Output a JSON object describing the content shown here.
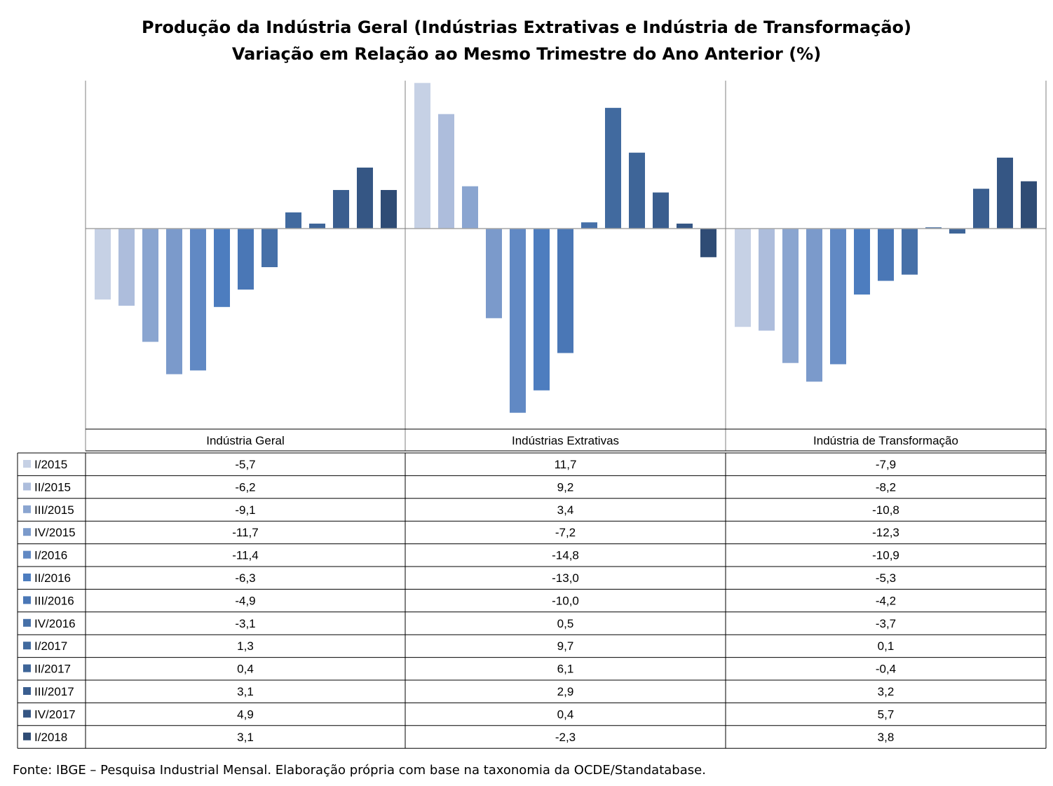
{
  "title": "Produção da Indústria Geral (Indústrias Extrativas e Indústria de Transformação)",
  "subtitle": "Variação em Relação ao Mesmo Trimestre do Ano Anterior (%)",
  "footer": "Fonte: IBGE – Pesquisa Industrial Mensal. Elaboração própria com base na taxonomia da OCDE/Standatabase.",
  "chart_data": {
    "type": "bar",
    "categories": [
      "Indústria Geral",
      "Indústrias Extrativas",
      "Indústria de Transformação"
    ],
    "series": [
      {
        "name": "I/2015",
        "color": "#c6d1e5",
        "values": [
          -5.7,
          11.7,
          -7.9
        ],
        "labels": [
          "-5,7",
          "11,7",
          "-7,9"
        ]
      },
      {
        "name": "II/2015",
        "color": "#adbddc",
        "values": [
          -6.2,
          9.2,
          -8.2
        ],
        "labels": [
          "-6,2",
          "9,2",
          "-8,2"
        ]
      },
      {
        "name": "III/2015",
        "color": "#8aa5d0",
        "values": [
          -9.1,
          3.4,
          -10.8
        ],
        "labels": [
          "-9,1",
          "3,4",
          "-10,8"
        ]
      },
      {
        "name": "IV/2015",
        "color": "#7b9acb",
        "values": [
          -11.7,
          -7.2,
          -12.3
        ],
        "labels": [
          "-11,7",
          "-7,2",
          "-12,3"
        ]
      },
      {
        "name": "I/2016",
        "color": "#6189c4",
        "values": [
          -11.4,
          -14.8,
          -10.9
        ],
        "labels": [
          "-11,4",
          "-14,8",
          "-10,9"
        ]
      },
      {
        "name": "II/2016",
        "color": "#4d7dbf",
        "values": [
          -6.3,
          -13.0,
          -5.3
        ],
        "labels": [
          "-6,3",
          "-13,0",
          "-5,3"
        ]
      },
      {
        "name": "III/2016",
        "color": "#4a77b6",
        "values": [
          -4.9,
          -10.0,
          -4.2
        ],
        "labels": [
          "-4,9",
          "-10,0",
          "-4,2"
        ]
      },
      {
        "name": "IV/2016",
        "color": "#4670a8",
        "values": [
          -3.1,
          0.5,
          -3.7
        ],
        "labels": [
          "-3,1",
          "0,5",
          "-3,7"
        ]
      },
      {
        "name": "I/2017",
        "color": "#416a9f",
        "values": [
          1.3,
          9.7,
          0.1
        ],
        "labels": [
          "1,3",
          "9,7",
          "0,1"
        ]
      },
      {
        "name": "II/2017",
        "color": "#3e6598",
        "values": [
          0.4,
          6.1,
          -0.4
        ],
        "labels": [
          "0,4",
          "6,1",
          "-0,4"
        ]
      },
      {
        "name": "III/2017",
        "color": "#3a5e8f",
        "values": [
          3.1,
          2.9,
          3.2
        ],
        "labels": [
          "3,1",
          "2,9",
          "3,2"
        ]
      },
      {
        "name": "IV/2017",
        "color": "#355684",
        "values": [
          4.9,
          0.4,
          5.7
        ],
        "labels": [
          "4,9",
          "0,4",
          "5,7"
        ]
      },
      {
        "name": "I/2018",
        "color": "#2f4c75",
        "values": [
          3.1,
          -2.3,
          3.8
        ],
        "labels": [
          "3,1",
          "-2,3",
          "3,8"
        ]
      }
    ],
    "legend": "data-table",
    "grid": false
  }
}
